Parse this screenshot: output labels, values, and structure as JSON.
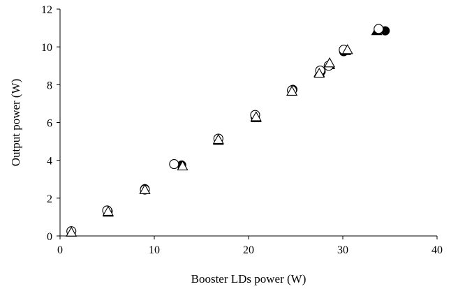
{
  "chart_data": {
    "type": "scatter",
    "xlabel": "Booster LDs power (W)",
    "ylabel": "Output power (W)",
    "xlim": [
      0,
      40
    ],
    "ylim": [
      0,
      12
    ],
    "xticks": [
      0,
      10,
      20,
      30,
      40
    ],
    "yticks": [
      0,
      2,
      4,
      6,
      8,
      10,
      12
    ],
    "grid": false,
    "legend": "none",
    "series": [
      {
        "marker": "filled-circle",
        "color": "#000000",
        "x": [
          1.2,
          5.1,
          9.0,
          12.9,
          16.8,
          20.7,
          24.7,
          27.7,
          28.5,
          30.1,
          34.5
        ],
        "y": [
          0.25,
          1.3,
          2.5,
          3.75,
          5.1,
          6.3,
          7.75,
          8.7,
          9.0,
          9.75,
          10.85
        ]
      },
      {
        "marker": "filled-triangle",
        "color": "#000000",
        "x": [
          1.2,
          5.1,
          9.0,
          13.0,
          16.8,
          20.8,
          24.6,
          27.5,
          28.6,
          30.3,
          33.6
        ],
        "y": [
          0.2,
          1.25,
          2.45,
          3.7,
          5.05,
          6.25,
          7.65,
          8.65,
          9.05,
          9.8,
          10.85
        ]
      },
      {
        "marker": "open-circle",
        "color": "#000000",
        "x": [
          1.2,
          5.0,
          9.0,
          12.1,
          16.8,
          20.7,
          24.6,
          27.6,
          28.5,
          30.1,
          33.8
        ],
        "y": [
          0.25,
          1.35,
          2.45,
          3.8,
          5.15,
          6.4,
          7.7,
          8.75,
          9.0,
          9.85,
          10.95
        ]
      },
      {
        "marker": "open-triangle",
        "color": "#000000",
        "x": [
          1.2,
          5.1,
          9.0,
          13.0,
          16.8,
          20.8,
          24.6,
          27.5,
          28.6,
          30.5
        ],
        "y": [
          0.2,
          1.3,
          2.45,
          3.7,
          5.1,
          6.3,
          7.65,
          8.6,
          9.15,
          9.85
        ]
      }
    ]
  }
}
